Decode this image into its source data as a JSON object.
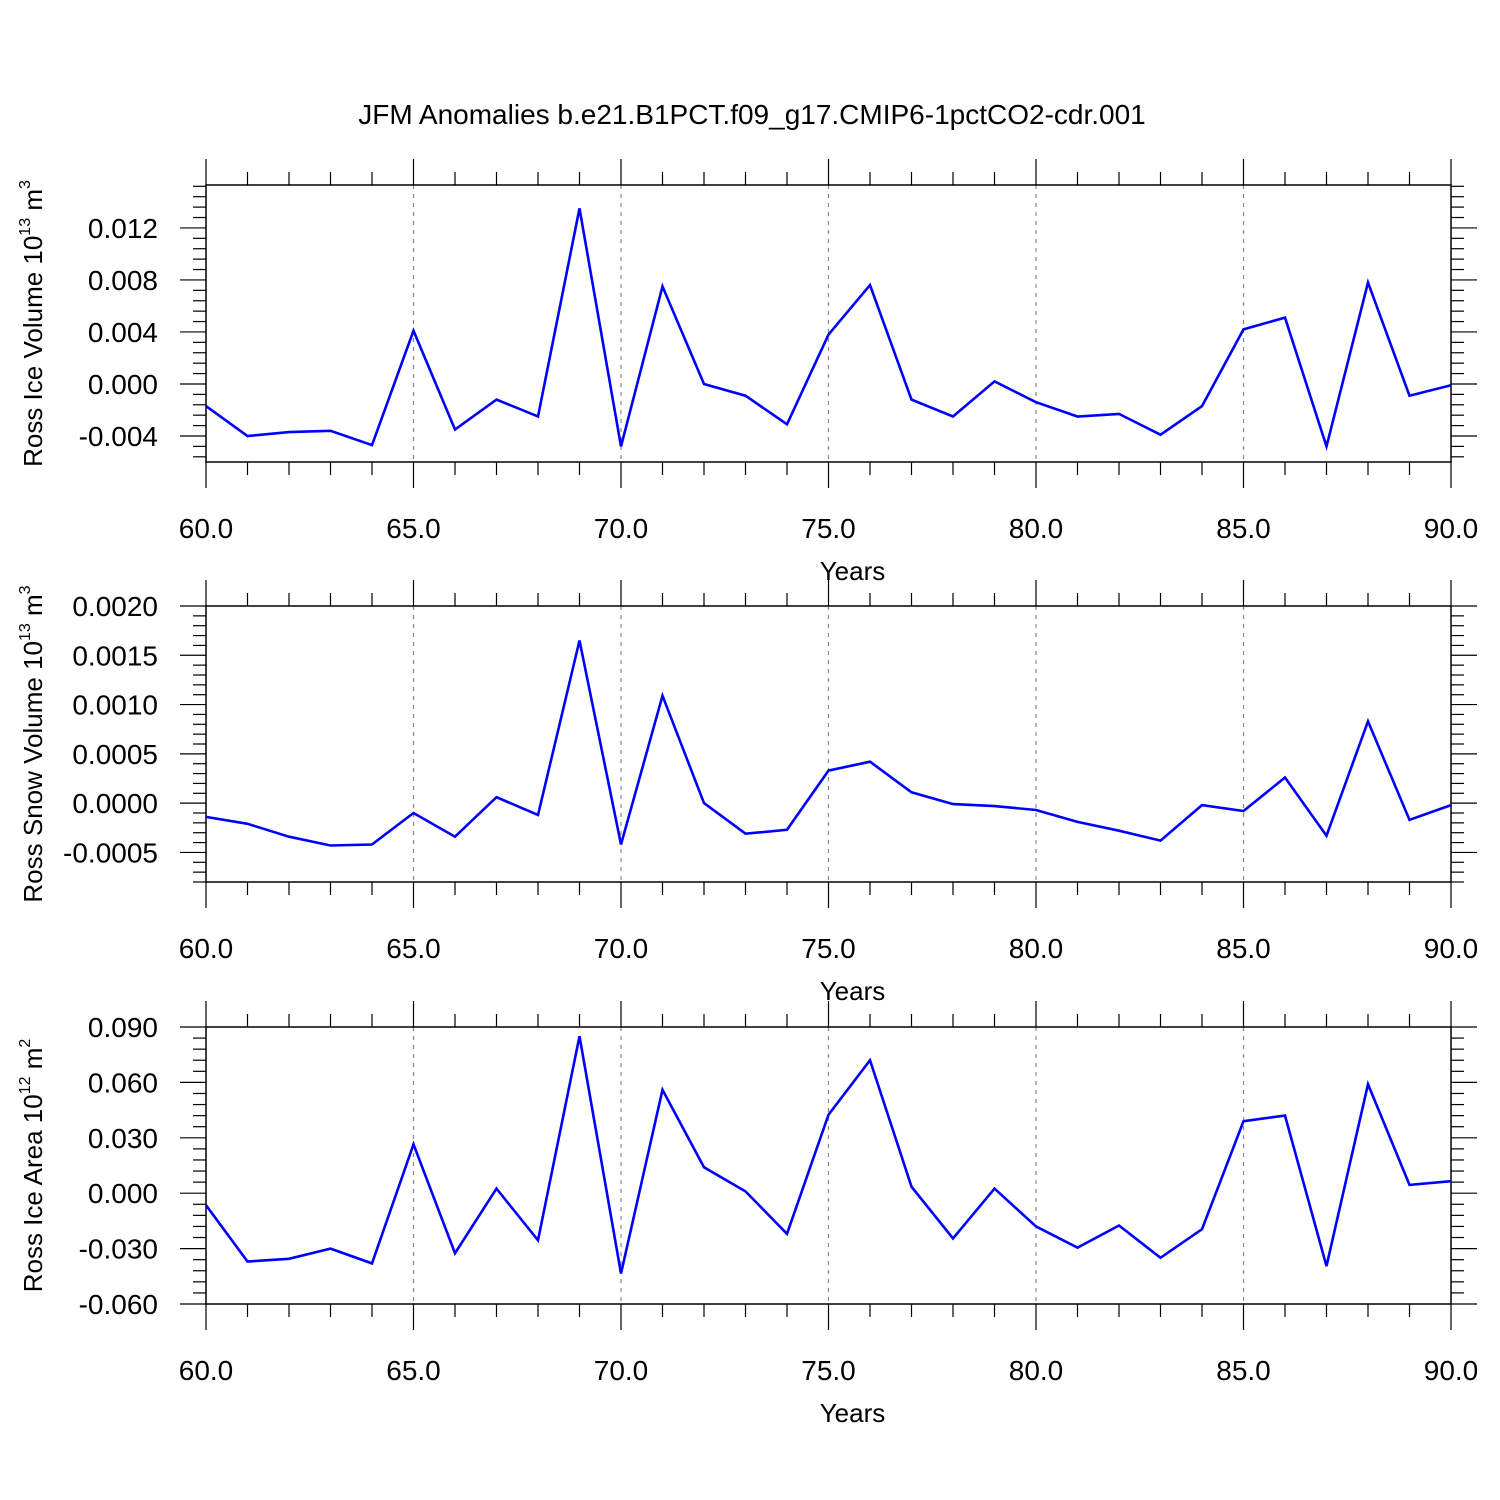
{
  "figure": {
    "title": "JFM Anomalies b.e21.B1PCT.f09_g17.CMIP6-1pctCO2-cdr.001",
    "colors": {
      "line": "#0000ff",
      "axis": "#000000",
      "grid": "#888888",
      "background": "#ffffff"
    }
  },
  "chart_data": [
    {
      "type": "line",
      "xlabel": "Years",
      "ylabel": "Ross Ice Volume 10",
      "ylabel_exp": "13",
      "ylabel_unit": " m",
      "ylabel_unit_exp": "3",
      "xlim": [
        60,
        90
      ],
      "ylim": [
        -0.006,
        0.0153
      ],
      "xticks": [
        "60.0",
        "65.0",
        "70.0",
        "75.0",
        "80.0",
        "85.0",
        "90.0"
      ],
      "yticks": [
        -0.004,
        0.0,
        0.004,
        0.008,
        0.012
      ],
      "ytick_labels": [
        "-0.004",
        "0.000",
        "0.004",
        "0.008",
        "0.012"
      ],
      "x_grid": "dashed vertical lines at major ticks",
      "x": [
        60,
        61,
        62,
        63,
        64,
        65,
        66,
        67,
        68,
        69,
        70,
        71,
        72,
        73,
        74,
        75,
        76,
        77,
        78,
        79,
        80,
        81,
        82,
        83,
        84,
        85,
        86,
        87,
        88,
        89,
        90
      ],
      "series": [
        {
          "values": [
            -0.0017,
            -0.004,
            -0.0037,
            -0.0036,
            -0.0047,
            0.0041,
            -0.0035,
            -0.0012,
            -0.0025,
            0.0135,
            -0.0048,
            0.0075,
            0.0,
            -0.0009,
            -0.0031,
            0.0038,
            0.0076,
            -0.0012,
            -0.0025,
            0.0002,
            -0.0014,
            -0.0025,
            -0.0023,
            -0.0039,
            -0.0017,
            0.0042,
            0.0051,
            -0.0048,
            0.0078,
            -0.0009,
            -0.0001
          ],
          "color": "#0000ff"
        }
      ]
    },
    {
      "type": "line",
      "xlabel": "Years",
      "ylabel": "Ross Snow Volume 10",
      "ylabel_exp": "13",
      "ylabel_unit": " m",
      "ylabel_unit_exp": "3",
      "xlim": [
        60,
        90
      ],
      "ylim": [
        -0.0008,
        0.002
      ],
      "xticks": [
        "60.0",
        "65.0",
        "70.0",
        "75.0",
        "80.0",
        "85.0",
        "90.0"
      ],
      "yticks": [
        -0.0005,
        0.0,
        0.0005,
        0.001,
        0.0015,
        0.002
      ],
      "ytick_labels": [
        "-0.0005",
        "0.0000",
        "0.0005",
        "0.0010",
        "0.0015",
        "0.0020"
      ],
      "x_grid": "dashed vertical lines at major ticks",
      "x": [
        60,
        61,
        62,
        63,
        64,
        65,
        66,
        67,
        68,
        69,
        70,
        71,
        72,
        73,
        74,
        75,
        76,
        77,
        78,
        79,
        80,
        81,
        82,
        83,
        84,
        85,
        86,
        87,
        88,
        89,
        90
      ],
      "series": [
        {
          "values": [
            -0.00014,
            -0.00021,
            -0.00034,
            -0.00043,
            -0.00042,
            -0.0001,
            -0.00034,
            6e-05,
            -0.00012,
            0.00165,
            -0.00042,
            0.00109,
            0.0,
            -0.00031,
            -0.00027,
            0.00033,
            0.00042,
            0.00011,
            -1e-05,
            -3e-05,
            -7e-05,
            -0.00019,
            -0.00028,
            -0.00038,
            -2e-05,
            -8e-05,
            0.00026,
            -0.00033,
            0.00083,
            -0.00017,
            -2e-05
          ],
          "color": "#0000ff"
        }
      ]
    },
    {
      "type": "line",
      "xlabel": "Years",
      "ylabel": "Ross Ice Area 10",
      "ylabel_exp": "12",
      "ylabel_unit": " m",
      "ylabel_unit_exp": "2",
      "xlim": [
        60,
        90
      ],
      "ylim": [
        -0.06,
        0.09
      ],
      "xticks": [
        "60.0",
        "65.0",
        "70.0",
        "75.0",
        "80.0",
        "85.0",
        "90.0"
      ],
      "yticks": [
        -0.06,
        -0.03,
        0.0,
        0.03,
        0.06,
        0.09
      ],
      "ytick_labels": [
        "-0.060",
        "-0.030",
        "0.000",
        "0.030",
        "0.060",
        "0.090"
      ],
      "x_grid": "dashed vertical lines at major ticks",
      "x": [
        60,
        61,
        62,
        63,
        64,
        65,
        66,
        67,
        68,
        69,
        70,
        71,
        72,
        73,
        74,
        75,
        76,
        77,
        78,
        79,
        80,
        81,
        82,
        83,
        84,
        85,
        86,
        87,
        88,
        89,
        90
      ],
      "series": [
        {
          "values": [
            -0.0065,
            -0.037,
            -0.0355,
            -0.03,
            -0.038,
            0.0265,
            -0.0325,
            0.0025,
            -0.0255,
            0.085,
            -0.0435,
            0.056,
            0.014,
            0.001,
            -0.022,
            0.0425,
            0.072,
            0.0035,
            -0.0245,
            0.0025,
            -0.018,
            -0.0295,
            -0.0175,
            -0.035,
            -0.0195,
            0.039,
            0.042,
            -0.0395,
            0.059,
            0.0045,
            0.0065
          ],
          "color": "#0000ff"
        }
      ]
    }
  ]
}
